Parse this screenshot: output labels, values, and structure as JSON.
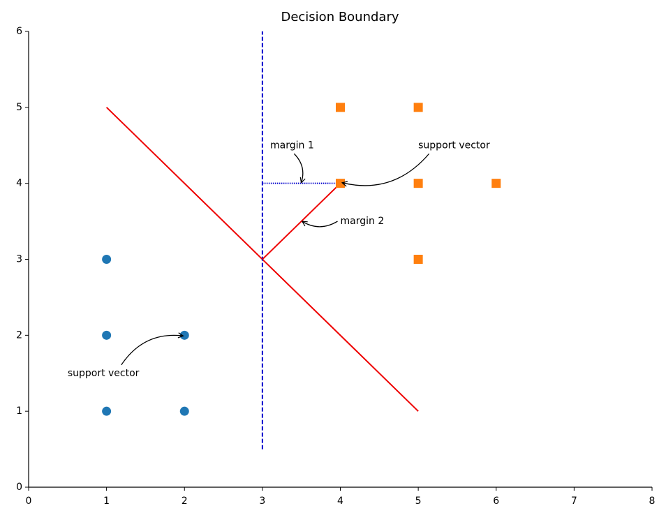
{
  "chart_data": {
    "type": "scatter",
    "title": "Decision Boundary",
    "xlim": [
      0,
      8
    ],
    "ylim": [
      0,
      6
    ],
    "xticks": [
      0,
      1,
      2,
      3,
      4,
      5,
      6,
      7,
      8
    ],
    "yticks": [
      0,
      1,
      2,
      3,
      4,
      5,
      6
    ],
    "series": [
      {
        "kind": "points",
        "marker": "circle",
        "color": "#1f77b4",
        "x": [
          1,
          1,
          2,
          1,
          2
        ],
        "y": [
          3,
          2,
          2,
          1,
          1
        ]
      },
      {
        "kind": "points",
        "marker": "square",
        "color": "#ff7f0e",
        "x": [
          4,
          5,
          4,
          5,
          6,
          5
        ],
        "y": [
          5,
          5,
          4,
          4,
          4,
          3
        ]
      },
      {
        "kind": "line",
        "style": "solid",
        "color": "#ee0000",
        "x": [
          1,
          5
        ],
        "y": [
          5,
          1
        ]
      },
      {
        "kind": "line",
        "style": "dashed",
        "color": "#0000cc",
        "x": [
          3,
          3
        ],
        "y": [
          0.5,
          6
        ]
      },
      {
        "kind": "line",
        "style": "dotted",
        "color": "#0000cc",
        "x": [
          3,
          4
        ],
        "y": [
          4,
          4
        ]
      },
      {
        "kind": "line",
        "style": "solid",
        "color": "#ee0000",
        "x": [
          3,
          4
        ],
        "y": [
          3,
          4
        ]
      }
    ],
    "annotations": [
      {
        "text": "margin 1",
        "xy": [
          3.5,
          4
        ],
        "xytext": [
          3.1,
          4.5
        ]
      },
      {
        "text": "support vector",
        "xy": [
          4,
          4
        ],
        "xytext": [
          5,
          4.5
        ]
      },
      {
        "text": "margin 2",
        "xy": [
          3.5,
          3.5
        ],
        "xytext": [
          4,
          3.5
        ]
      },
      {
        "text": "support vector",
        "xy": [
          2,
          2
        ],
        "xytext": [
          0.5,
          1.5
        ]
      }
    ]
  }
}
